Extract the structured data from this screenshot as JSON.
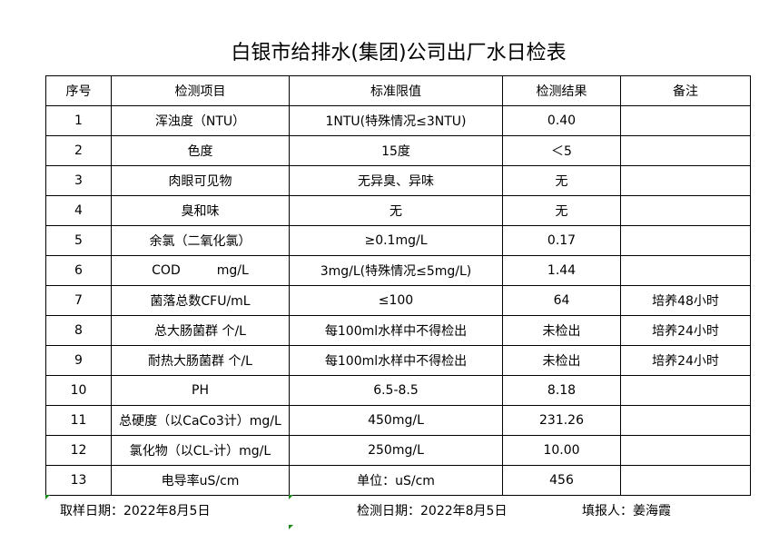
{
  "title": "白银市给排水(集团)公司出厂水日检表",
  "headers": [
    "序号",
    "检测项目",
    "标准限值",
    "检测结果",
    "备注"
  ],
  "rows": [
    [
      "1",
      "浑浊度（NTU）",
      "1NTU(特殊情况≤3NTU)",
      "0.40",
      ""
    ],
    [
      "2",
      "色度",
      "15度",
      "＜5",
      ""
    ],
    [
      "3",
      "肉眼可见物",
      "无异臭、异味",
      "无",
      ""
    ],
    [
      "4",
      "臭和味",
      "无",
      "无",
      ""
    ],
    [
      "5",
      "余氯（二氧化氯）",
      "≥0.1mg/L",
      "0.17",
      ""
    ],
    [
      "6",
      "COD         mg/L",
      "3mg/L(特殊情况≤5mg/L)",
      "1.44",
      ""
    ],
    [
      "7",
      "菌落总数CFU/mL",
      "≤100",
      "64",
      "培养48小时"
    ],
    [
      "8",
      "总大肠菌群 个/L",
      "每100ml水样中不得检出",
      "未检出",
      "培养24小时"
    ],
    [
      "9",
      "耐热大肠菌群 个/L",
      "每100ml水样中不得检出",
      "未检出",
      "培养24小时"
    ],
    [
      "10",
      "PH",
      "6.5-8.5",
      "8.18",
      ""
    ],
    [
      "11",
      "总硬度（以CaCo3计）mg/L",
      "450mg/L",
      "231.26",
      ""
    ],
    [
      "12",
      "氯化物（以CL-计）mg/L",
      "250mg/L",
      "10.00",
      ""
    ],
    [
      "13",
      "电导率uS/cm",
      "单位：uS/cm",
      "456",
      ""
    ]
  ],
  "footer": {
    "sample_date": "取样日期：2022年8月5日",
    "test_date": "检测日期：2022年8月5日",
    "reporter": "填报人：姜海霞"
  }
}
